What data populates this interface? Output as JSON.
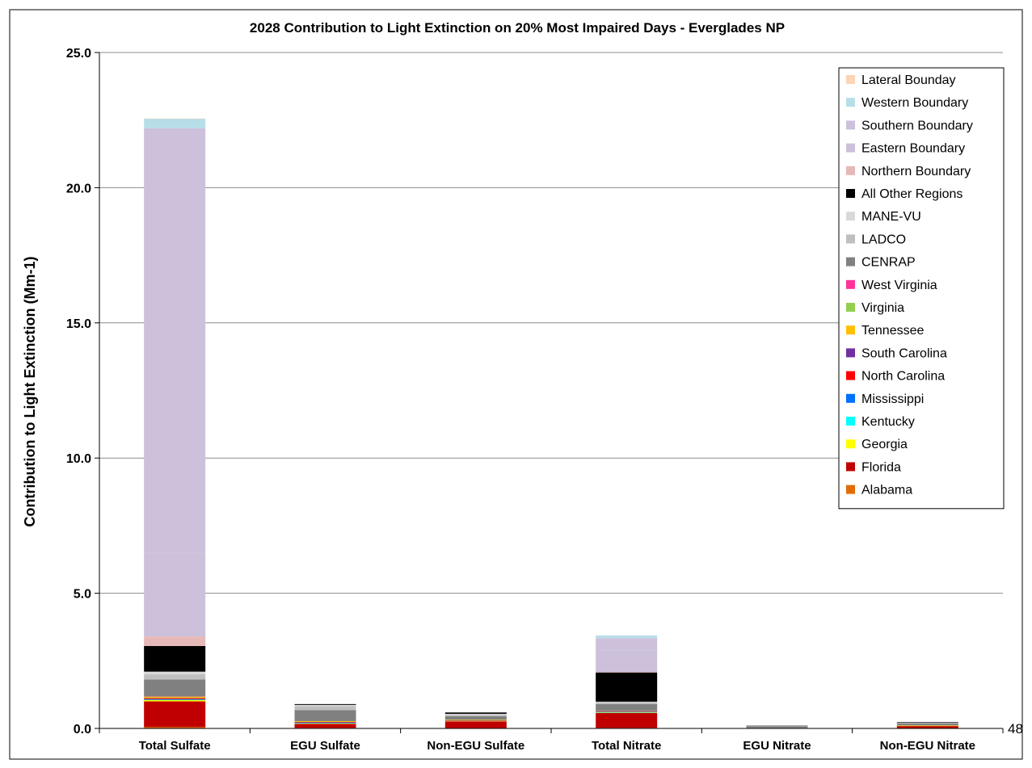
{
  "page_number": "48",
  "chart_data": {
    "type": "bar",
    "stacked": true,
    "title": "2028 Contribution to Light Extinction on 20% Most Impaired Days - Everglades NP",
    "xlabel": "",
    "ylabel": "Contribution to Light Extinction (Mm-1)",
    "ylim": [
      0,
      25
    ],
    "yticks": [
      "0.0",
      "5.0",
      "10.0",
      "15.0",
      "20.0",
      "25.0"
    ],
    "grid": true,
    "legend_position": "top-right",
    "categories": [
      "Total Sulfate",
      "EGU Sulfate",
      "Non-EGU Sulfate",
      "Total Nitrate",
      "EGU Nitrate",
      "Non-EGU Nitrate"
    ],
    "series": [
      {
        "name": "Alabama",
        "color": "#E36C09",
        "values": [
          0.05,
          0.02,
          0.01,
          0.02,
          0.0,
          0.01
        ]
      },
      {
        "name": "Florida",
        "color": "#C00000",
        "values": [
          0.95,
          0.15,
          0.25,
          0.55,
          0.02,
          0.08
        ]
      },
      {
        "name": "Georgia",
        "color": "#FFFF00",
        "values": [
          0.05,
          0.02,
          0.02,
          0.02,
          0.0,
          0.01
        ]
      },
      {
        "name": "Kentucky",
        "color": "#00FFFF",
        "values": [
          0.01,
          0.01,
          0.0,
          0.01,
          0.0,
          0.0
        ]
      },
      {
        "name": "Mississippi",
        "color": "#0070FF",
        "values": [
          0.02,
          0.01,
          0.01,
          0.02,
          0.0,
          0.0
        ]
      },
      {
        "name": "North Carolina",
        "color": "#FF0000",
        "values": [
          0.03,
          0.02,
          0.01,
          0.01,
          0.0,
          0.0
        ]
      },
      {
        "name": "South Carolina",
        "color": "#7030A0",
        "values": [
          0.01,
          0.01,
          0.0,
          0.01,
          0.0,
          0.0
        ]
      },
      {
        "name": "Tennessee",
        "color": "#FFC000",
        "values": [
          0.05,
          0.03,
          0.02,
          0.01,
          0.0,
          0.01
        ]
      },
      {
        "name": "Virginia",
        "color": "#92D050",
        "values": [
          0.01,
          0.0,
          0.0,
          0.0,
          0.0,
          0.0
        ]
      },
      {
        "name": "West Virginia",
        "color": "#FF3399",
        "values": [
          0.01,
          0.0,
          0.0,
          0.0,
          0.0,
          0.0
        ]
      },
      {
        "name": "CENRAP",
        "color": "#808080",
        "values": [
          0.62,
          0.41,
          0.13,
          0.25,
          0.05,
          0.08
        ]
      },
      {
        "name": "LADCO",
        "color": "#BFBFBF",
        "values": [
          0.19,
          0.14,
          0.06,
          0.07,
          0.02,
          0.02
        ]
      },
      {
        "name": "MANE-VU",
        "color": "#D9D9D9",
        "values": [
          0.1,
          0.05,
          0.03,
          0.02,
          0.0,
          0.01
        ]
      },
      {
        "name": "All Other Regions",
        "color": "#000000",
        "values": [
          0.95,
          0.03,
          0.05,
          1.08,
          0.01,
          0.02
        ]
      },
      {
        "name": "Northern Boundary",
        "color": "#E6B8B7",
        "values": [
          0.35,
          0.0,
          0.0,
          0.02,
          0.0,
          0.0
        ]
      },
      {
        "name": "Eastern Boundary",
        "color": "#CCC0DA",
        "values": [
          3.1,
          0.0,
          0.0,
          0.8,
          0.0,
          0.0
        ]
      },
      {
        "name": "Southern Boundary",
        "color": "#CCC0DA",
        "values": [
          15.7,
          0.0,
          0.0,
          0.45,
          0.0,
          0.0
        ]
      },
      {
        "name": "Western Boundary",
        "color": "#B7DEE8",
        "values": [
          0.35,
          0.0,
          0.0,
          0.1,
          0.0,
          0.0
        ]
      },
      {
        "name": "Lateral Bounday",
        "color": "#FCD5B4",
        "values": [
          0.01,
          0.0,
          0.0,
          0.0,
          0.0,
          0.0
        ]
      }
    ]
  }
}
